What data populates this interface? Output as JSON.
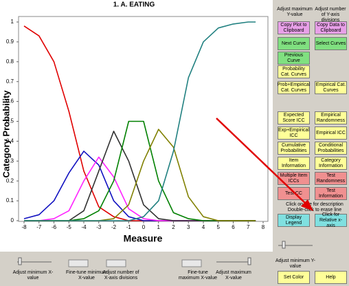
{
  "chart_data": {
    "type": "line",
    "title": "1. A. EATING",
    "x_label": "Measure",
    "y_label": "Category Probability",
    "x": [
      -8,
      -7,
      -6,
      -5,
      -4,
      -3,
      -2,
      -1,
      0,
      1,
      2,
      3,
      4,
      5,
      6,
      7,
      7.5
    ],
    "series": [
      {
        "color": "#e00000",
        "values": [
          0.98,
          0.93,
          0.8,
          0.55,
          0.25,
          0.07,
          0.02,
          0,
          0,
          0,
          0,
          0,
          0,
          0,
          0,
          0,
          0
        ]
      },
      {
        "color": "#1010c0",
        "values": [
          0.01,
          0.03,
          0.1,
          0.24,
          0.35,
          0.28,
          0.1,
          0.02,
          0,
          0,
          0,
          0,
          0,
          0,
          0,
          0,
          0
        ]
      },
      {
        "color": "#ff20ff",
        "values": [
          0,
          0,
          0.01,
          0.05,
          0.2,
          0.32,
          0.22,
          0.06,
          0.01,
          0,
          0,
          0,
          0,
          0,
          0,
          0,
          0
        ]
      },
      {
        "color": "#303030",
        "values": [
          0,
          0,
          0,
          0,
          0.05,
          0.25,
          0.45,
          0.3,
          0.08,
          0.01,
          0,
          0,
          0,
          0,
          0,
          0,
          0
        ]
      },
      {
        "color": "#008000",
        "values": [
          0,
          0,
          0,
          0,
          0.01,
          0.05,
          0.2,
          0.5,
          0.5,
          0.2,
          0.04,
          0.01,
          0,
          0,
          0,
          0,
          0
        ]
      },
      {
        "color": "#808000",
        "values": [
          0,
          0,
          0,
          0,
          0,
          0,
          0.01,
          0.08,
          0.3,
          0.46,
          0.37,
          0.12,
          0.02,
          0,
          0,
          0,
          0
        ]
      },
      {
        "color": "#208080",
        "values": [
          0,
          0,
          0,
          0,
          0,
          0,
          0,
          0,
          0.02,
          0.1,
          0.35,
          0.72,
          0.9,
          0.97,
          0.99,
          1,
          1
        ]
      }
    ],
    "xlim": [
      -8,
      8
    ],
    "xticks": [
      -8,
      -7,
      -6,
      -5,
      -4,
      -3,
      -2,
      -1,
      0,
      1,
      2,
      3,
      4,
      5,
      6,
      7,
      8
    ],
    "ylim": [
      0,
      1
    ],
    "yticks": [
      0,
      0.1,
      0.2,
      0.3,
      0.4,
      0.5,
      0.6,
      0.7,
      0.8,
      0.9,
      1
    ]
  },
  "top_labels": [
    "Adjust maximum Y-value",
    "Adjust number of Y-axis divisions"
  ],
  "button_rows": [
    [
      {
        "label": "Copy Plot to Clipboard",
        "color": "#e8a0e8"
      },
      {
        "label": "Copy Data to Clipboard",
        "color": "#e8a0e8"
      }
    ],
    [
      {
        "label": "Next Curve",
        "color": "#80e080"
      },
      {
        "label": "Select Curves",
        "color": "#80e080"
      }
    ],
    [
      {
        "label": "Previous Curve",
        "color": "#80e080"
      }
    ],
    [
      {
        "label": "Probability Cat. Curves",
        "color": "#ffff99"
      }
    ],
    [
      {
        "label": "Prob+Empirical Cat. Curves",
        "color": "#ffff99"
      },
      {
        "label": "Empirical Cat. Curves",
        "color": "#ffff99"
      }
    ],
    [
      {
        "label": "Expected Score ICC",
        "color": "#ffff99"
      },
      {
        "label": "Empirical Randomness",
        "color": "#ffff99"
      }
    ],
    [
      {
        "label": "Exp+Empirical ICC",
        "color": "#ffff99"
      },
      {
        "label": "Empirical ICC",
        "color": "#ffff99"
      }
    ],
    [
      {
        "label": "Cumulative Probabilities",
        "color": "#ffff99"
      },
      {
        "label": "Conditional Probabilities",
        "color": "#ffff99"
      }
    ],
    [
      {
        "label": "Item Information",
        "color": "#ffff99"
      },
      {
        "label": "Category Information",
        "color": "#ffff99"
      }
    ],
    [
      {
        "label": "Multiple Item ICCs",
        "color": "#f09090"
      },
      {
        "label": "Test Randomness",
        "color": "#f09090"
      }
    ],
    [
      {
        "label": "Test CC",
        "color": "#f09090"
      },
      {
        "label": "Test Information",
        "color": "#f09090"
      }
    ],
    [
      {
        "label": "Display Legend",
        "color": "#80e0e0"
      },
      {
        "label": "Click for Relative x-axis",
        "color": "#80e0e0"
      }
    ],
    [
      {
        "label": "Set Color",
        "color": "#ffff99"
      },
      {
        "label": "Help",
        "color": "#ffff99"
      }
    ]
  ],
  "line_hint": "Click on line for description Double-click to erase line",
  "y_min_label": "Adjust minimum Y-value",
  "bottom_labels": [
    "Adjust minimum X-value",
    "Fine-tune minimum X-value",
    "Adjust number of X-axis divisions",
    "Fine-tune maximum X-value",
    "Adjust maximum X-value"
  ]
}
